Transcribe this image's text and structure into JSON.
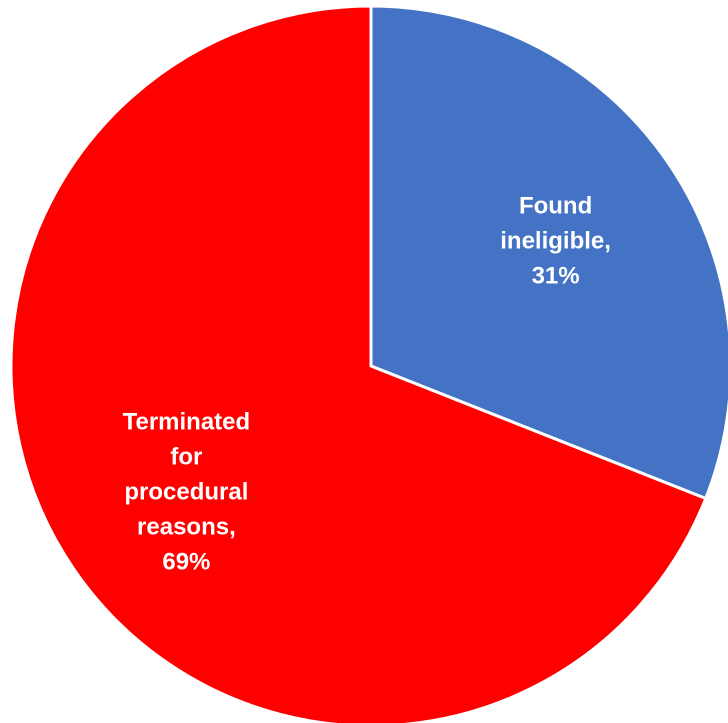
{
  "chart_data": {
    "type": "pie",
    "title": "",
    "slices": [
      {
        "label_lines": [
          "Found",
          "ineligible,",
          "31%"
        ],
        "category": "Found ineligible",
        "value": 31,
        "color": "#4472C4"
      },
      {
        "label_lines": [
          "Terminated",
          "for",
          "procedural",
          "reasons,",
          "69%"
        ],
        "category": "Terminated for procedural reasons",
        "value": 69,
        "color": "#FF0000"
      }
    ],
    "start_angle_deg": 0,
    "direction": "clockwise",
    "legend": "none"
  }
}
